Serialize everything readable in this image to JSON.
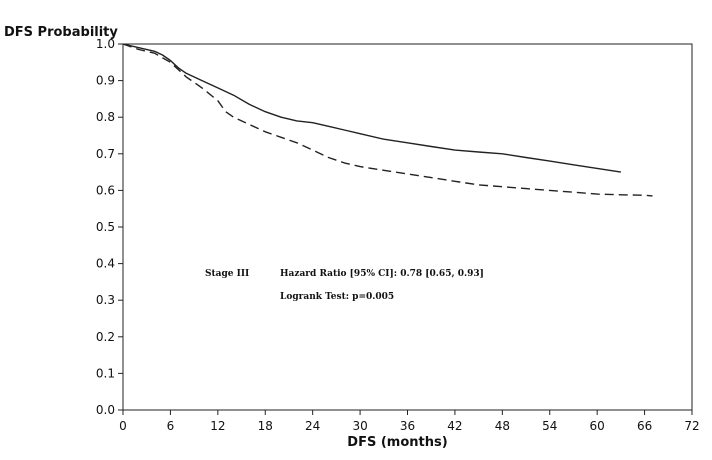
{
  "chart_data": {
    "type": "line",
    "title": "",
    "ylabel": "DFS Probability",
    "xlabel": "DFS (months)",
    "xlim": [
      0,
      72
    ],
    "ylim": [
      0.0,
      1.0
    ],
    "x_ticks": [
      0,
      6,
      12,
      18,
      24,
      30,
      36,
      42,
      48,
      54,
      60,
      66,
      72
    ],
    "y_ticks": [
      0.0,
      0.1,
      0.2,
      0.3,
      0.4,
      0.5,
      0.6,
      0.7,
      0.8,
      0.9,
      1.0
    ],
    "y_tick_labels": [
      "0.0",
      "0.1",
      "0.2",
      "0.3",
      "0.4",
      "0.5",
      "0.6",
      "0.7",
      "0.8",
      "0.9",
      "1.0"
    ],
    "grid": false,
    "annotations": {
      "stage": "Stage III",
      "hazard_ratio": "Hazard Ratio [95% CI]: 0.78 [0.65, 0.93]",
      "logrank": "Logrank Test:   p=0.005"
    },
    "series": [
      {
        "style": "solid",
        "x": [
          0,
          2,
          4,
          5,
          6,
          7,
          8,
          10,
          12,
          14,
          16,
          18,
          20,
          22,
          24,
          26,
          28,
          30,
          33,
          36,
          39,
          42,
          45,
          48,
          51,
          54,
          57,
          60,
          63
        ],
        "y": [
          1.0,
          0.99,
          0.98,
          0.97,
          0.955,
          0.935,
          0.92,
          0.9,
          0.88,
          0.86,
          0.835,
          0.815,
          0.8,
          0.79,
          0.785,
          0.775,
          0.765,
          0.755,
          0.74,
          0.73,
          0.72,
          0.71,
          0.705,
          0.7,
          0.69,
          0.68,
          0.67,
          0.66,
          0.65
        ]
      },
      {
        "style": "dashed",
        "x": [
          0,
          2,
          4,
          6,
          8,
          10,
          12,
          13,
          14,
          16,
          18,
          20,
          22,
          24,
          26,
          28,
          30,
          33,
          36,
          39,
          42,
          45,
          48,
          51,
          54,
          57,
          60,
          63,
          66,
          67
        ],
        "y": [
          1.0,
          0.985,
          0.975,
          0.95,
          0.91,
          0.88,
          0.845,
          0.815,
          0.8,
          0.78,
          0.76,
          0.745,
          0.73,
          0.71,
          0.69,
          0.675,
          0.665,
          0.655,
          0.645,
          0.635,
          0.625,
          0.615,
          0.61,
          0.605,
          0.6,
          0.595,
          0.59,
          0.588,
          0.587,
          0.585
        ]
      }
    ]
  }
}
